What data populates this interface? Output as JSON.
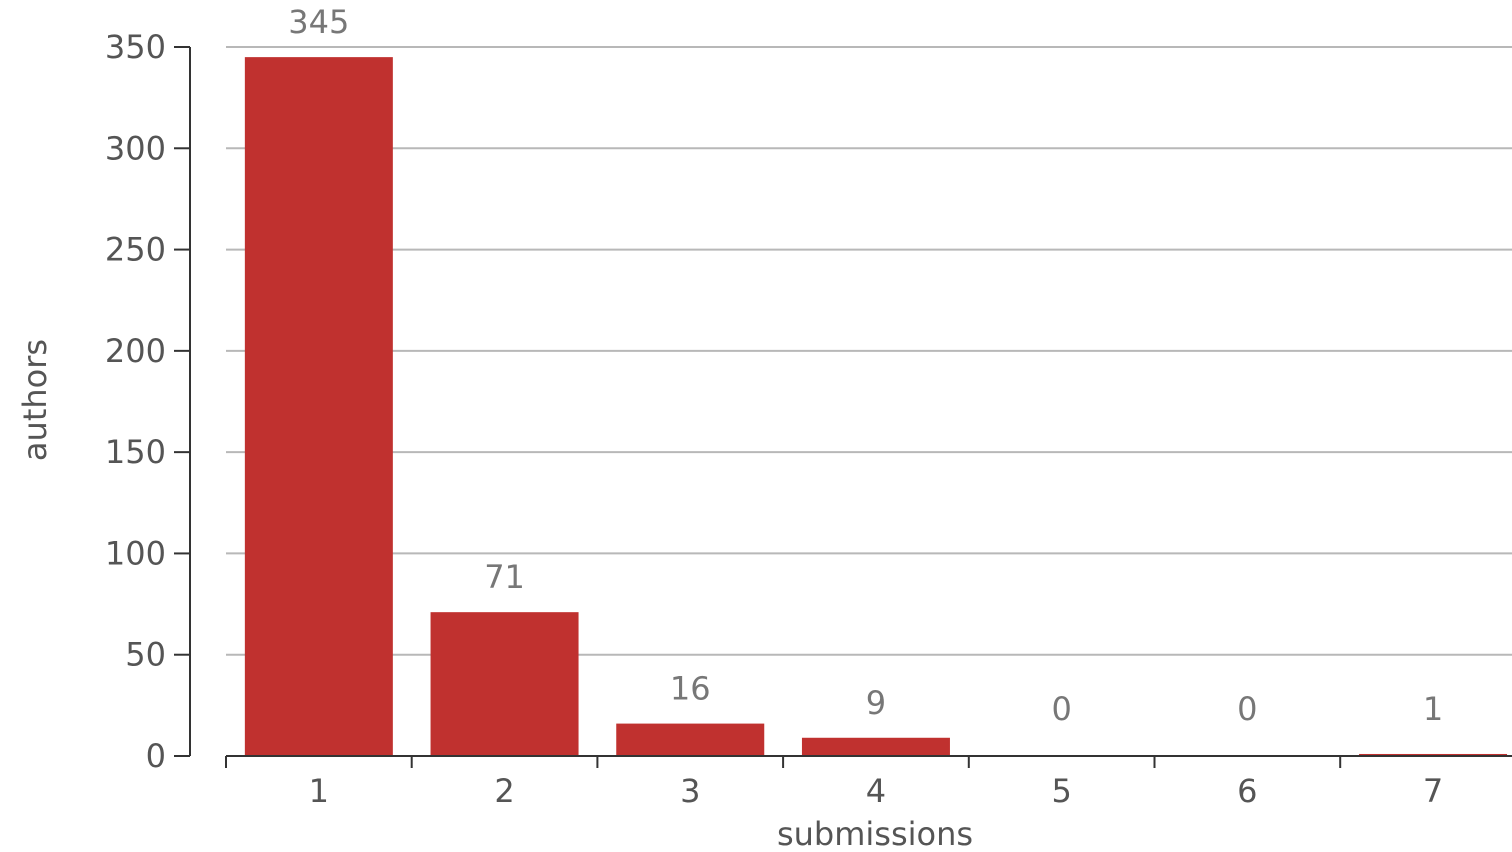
{
  "chart_data": {
    "type": "bar",
    "categories": [
      "1",
      "2",
      "3",
      "4",
      "5",
      "6",
      "7"
    ],
    "values": [
      345,
      71,
      16,
      9,
      0,
      0,
      1
    ],
    "data_labels": [
      "345",
      "71",
      "16",
      "9",
      "0",
      "0",
      "1"
    ],
    "xlabel": "submissions",
    "ylabel": "authors",
    "ylim": [
      0,
      350
    ],
    "yticks": [
      "0",
      "50",
      "100",
      "150",
      "200",
      "250",
      "300",
      "350"
    ],
    "grid": true,
    "bar_color": "#c0312f",
    "grid_color": "#b8b8b8"
  }
}
